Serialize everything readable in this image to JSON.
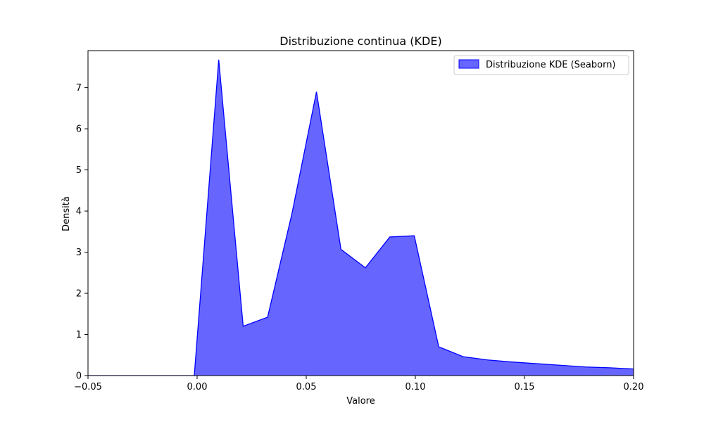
{
  "chart_data": {
    "type": "area",
    "title": "Distribuzione continua (KDE)",
    "xlabel": "Valore",
    "ylabel": "Densità",
    "xlim": [
      -0.05,
      0.2
    ],
    "ylim": [
      0,
      7.9
    ],
    "xticks": [
      -0.05,
      0.0,
      0.05,
      0.1,
      0.15,
      0.2
    ],
    "xtick_labels": [
      "−0.05",
      "0.00",
      "0.05",
      "0.10",
      "0.15",
      "0.20"
    ],
    "yticks": [
      0,
      1,
      2,
      3,
      4,
      5,
      6,
      7
    ],
    "ytick_labels": [
      "0",
      "1",
      "2",
      "3",
      "4",
      "5",
      "6",
      "7"
    ],
    "grid": false,
    "legend_position": "top-right",
    "series": [
      {
        "name": "Distribuzione KDE (Seaborn)",
        "color": "#0000ff",
        "fill_color": "#6666ff",
        "x": [
          -0.0013,
          0.0099,
          0.0211,
          0.0323,
          0.0435,
          0.0547,
          0.0659,
          0.0771,
          0.0883,
          0.0995,
          0.1107,
          0.1219,
          0.1331,
          0.1443,
          0.1555,
          0.1667,
          0.1779,
          0.1891,
          0.2
        ],
        "y": [
          0.0,
          7.68,
          1.2,
          1.42,
          3.95,
          6.9,
          3.07,
          2.62,
          3.37,
          3.4,
          0.7,
          0.46,
          0.38,
          0.33,
          0.29,
          0.25,
          0.21,
          0.19,
          0.16
        ]
      }
    ]
  }
}
